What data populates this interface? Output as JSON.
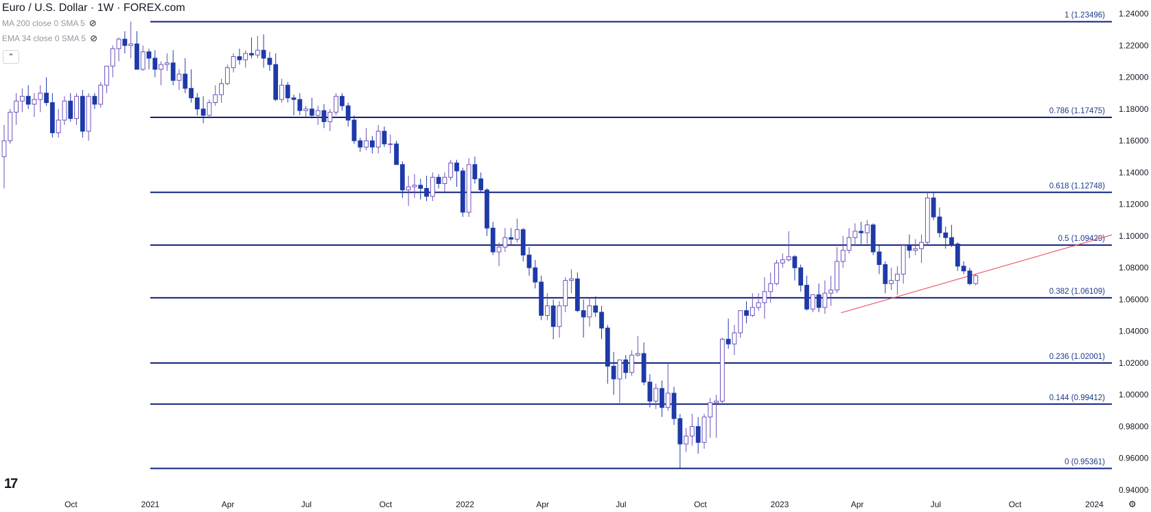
{
  "legend": {
    "title": "Euro / U.S. Dollar · 1W · FOREX.com",
    "ind1": "MA 200 close 0 SMA 5",
    "ind2": "EMA 34 close 0 SMA 5",
    "collapse_icon": "chevron-up-icon",
    "eye_icon": "eye-crossed-icon"
  },
  "logo_text": "17",
  "colors": {
    "bg": "#ffffff",
    "fib_line": "#0d1f7a",
    "fib_label": "#1e3a8a",
    "up_candle_fill": "#ffffff",
    "up_candle_border": "#6b4fbb",
    "down_candle_fill": "#1e3aa8",
    "trendline": "#f05b6a",
    "axis_text": "#131722"
  },
  "chart_data": {
    "type": "candlestick",
    "timeframe": "1W",
    "instrument": "Euro / U.S. Dollar",
    "x_tick_labels": [
      "Oct",
      "2021",
      "Apr",
      "Jul",
      "Oct",
      "2022",
      "Apr",
      "Jul",
      "Oct",
      "2023",
      "Apr",
      "Jul",
      "Oct",
      "2024"
    ],
    "y_tick_labels": [
      "1.24000",
      "1.22000",
      "1.20000",
      "1.18000",
      "1.16000",
      "1.14000",
      "1.12000",
      "1.10000",
      "1.08000",
      "1.06000",
      "1.04000",
      "1.02000",
      "1.00000",
      "0.98000",
      "0.96000",
      "0.94000"
    ],
    "y_ticks": [
      1.24,
      1.22,
      1.2,
      1.18,
      1.16,
      1.14,
      1.12,
      1.1,
      1.08,
      1.06,
      1.04,
      1.02,
      1.0,
      0.98,
      0.96,
      0.94
    ],
    "ylim": [
      0.937,
      1.2455
    ],
    "fib_levels": [
      {
        "label": "1 (1.23496)",
        "value": 1.23496
      },
      {
        "label": "0.786 (1.17475)",
        "value": 1.17475
      },
      {
        "label": "0.618 (1.12748)",
        "value": 1.12748
      },
      {
        "label": "0.5 (1.09429)",
        "value": 1.09429
      },
      {
        "label": "0.382 (1.06109)",
        "value": 1.06109
      },
      {
        "label": "0.236 (1.02001)",
        "value": 1.02001
      },
      {
        "label": "0.144 (0.99412)",
        "value": 0.99412
      },
      {
        "label": "0 (0.95361)",
        "value": 0.95361
      }
    ],
    "trendline": {
      "start": [
        "2023-03-13",
        1.0516
      ],
      "end": [
        "2023-11-20",
        1.1007
      ]
    },
    "candles": [
      [
        1.15,
        1.17,
        1.13,
        1.16
      ],
      [
        1.16,
        1.18,
        1.158,
        1.178
      ],
      [
        1.178,
        1.19,
        1.17,
        1.185
      ],
      [
        1.185,
        1.193,
        1.178,
        1.188
      ],
      [
        1.188,
        1.195,
        1.18,
        1.183
      ],
      [
        1.183,
        1.19,
        1.175,
        1.186
      ],
      [
        1.186,
        1.195,
        1.178,
        1.19
      ],
      [
        1.19,
        1.2,
        1.182,
        1.184
      ],
      [
        1.184,
        1.19,
        1.162,
        1.165
      ],
      [
        1.165,
        1.18,
        1.162,
        1.173
      ],
      [
        1.173,
        1.188,
        1.17,
        1.185
      ],
      [
        1.185,
        1.19,
        1.172,
        1.174
      ],
      [
        1.174,
        1.19,
        1.17,
        1.188
      ],
      [
        1.188,
        1.192,
        1.162,
        1.166
      ],
      [
        1.166,
        1.19,
        1.16,
        1.188
      ],
      [
        1.188,
        1.19,
        1.18,
        1.183
      ],
      [
        1.183,
        1.197,
        1.181,
        1.195
      ],
      [
        1.195,
        1.207,
        1.19,
        1.207
      ],
      [
        1.207,
        1.22,
        1.2,
        1.218
      ],
      [
        1.218,
        1.225,
        1.21,
        1.224
      ],
      [
        1.224,
        1.229,
        1.215,
        1.22
      ],
      [
        1.22,
        1.235,
        1.212,
        1.221
      ],
      [
        1.221,
        1.229,
        1.205,
        1.205
      ],
      [
        1.205,
        1.22,
        1.204,
        1.216
      ],
      [
        1.216,
        1.218,
        1.205,
        1.212
      ],
      [
        1.212,
        1.217,
        1.2,
        1.205
      ],
      [
        1.205,
        1.21,
        1.195,
        1.208
      ],
      [
        1.208,
        1.215,
        1.204,
        1.209
      ],
      [
        1.209,
        1.217,
        1.195,
        1.198
      ],
      [
        1.198,
        1.205,
        1.192,
        1.202
      ],
      [
        1.202,
        1.212,
        1.19,
        1.193
      ],
      [
        1.193,
        1.205,
        1.184,
        1.187
      ],
      [
        1.187,
        1.19,
        1.176,
        1.18
      ],
      [
        1.18,
        1.188,
        1.171,
        1.176
      ],
      [
        1.176,
        1.186,
        1.174,
        1.184
      ],
      [
        1.184,
        1.195,
        1.182,
        1.189
      ],
      [
        1.189,
        1.199,
        1.184,
        1.196
      ],
      [
        1.196,
        1.208,
        1.195,
        1.206
      ],
      [
        1.206,
        1.215,
        1.203,
        1.213
      ],
      [
        1.213,
        1.218,
        1.208,
        1.211
      ],
      [
        1.211,
        1.217,
        1.206,
        1.215
      ],
      [
        1.215,
        1.225,
        1.212,
        1.214
      ],
      [
        1.214,
        1.226,
        1.212,
        1.217
      ],
      [
        1.217,
        1.227,
        1.206,
        1.212
      ],
      [
        1.212,
        1.216,
        1.204,
        1.208
      ],
      [
        1.208,
        1.215,
        1.185,
        1.186
      ],
      [
        1.186,
        1.199,
        1.184,
        1.195
      ],
      [
        1.195,
        1.197,
        1.184,
        1.187
      ],
      [
        1.187,
        1.189,
        1.176,
        1.186
      ],
      [
        1.186,
        1.19,
        1.176,
        1.179
      ],
      [
        1.179,
        1.182,
        1.175,
        1.18
      ],
      [
        1.18,
        1.187,
        1.174,
        1.176
      ],
      [
        1.176,
        1.182,
        1.17,
        1.179
      ],
      [
        1.179,
        1.183,
        1.168,
        1.172
      ],
      [
        1.172,
        1.18,
        1.166,
        1.178
      ],
      [
        1.178,
        1.19,
        1.176,
        1.188
      ],
      [
        1.188,
        1.19,
        1.179,
        1.182
      ],
      [
        1.182,
        1.184,
        1.169,
        1.173
      ],
      [
        1.173,
        1.176,
        1.158,
        1.16
      ],
      [
        1.16,
        1.162,
        1.153,
        1.156
      ],
      [
        1.156,
        1.168,
        1.154,
        1.16
      ],
      [
        1.16,
        1.163,
        1.152,
        1.156
      ],
      [
        1.156,
        1.17,
        1.152,
        1.166
      ],
      [
        1.166,
        1.169,
        1.156,
        1.158
      ],
      [
        1.158,
        1.164,
        1.152,
        1.158
      ],
      [
        1.158,
        1.16,
        1.145,
        1.145
      ],
      [
        1.145,
        1.147,
        1.124,
        1.129
      ],
      [
        1.129,
        1.138,
        1.119,
        1.131
      ],
      [
        1.131,
        1.139,
        1.124,
        1.132
      ],
      [
        1.132,
        1.136,
        1.123,
        1.13
      ],
      [
        1.13,
        1.138,
        1.122,
        1.125
      ],
      [
        1.125,
        1.14,
        1.122,
        1.137
      ],
      [
        1.137,
        1.139,
        1.13,
        1.133
      ],
      [
        1.133,
        1.14,
        1.128,
        1.137
      ],
      [
        1.137,
        1.148,
        1.135,
        1.146
      ],
      [
        1.146,
        1.148,
        1.131,
        1.141
      ],
      [
        1.141,
        1.143,
        1.112,
        1.115
      ],
      [
        1.115,
        1.149,
        1.112,
        1.145
      ],
      [
        1.145,
        1.15,
        1.133,
        1.136
      ],
      [
        1.136,
        1.14,
        1.127,
        1.129
      ],
      [
        1.129,
        1.13,
        1.1,
        1.105
      ],
      [
        1.105,
        1.109,
        1.088,
        1.09
      ],
      [
        1.09,
        1.096,
        1.081,
        1.093
      ],
      [
        1.093,
        1.105,
        1.09,
        1.099
      ],
      [
        1.099,
        1.105,
        1.094,
        1.098
      ],
      [
        1.098,
        1.111,
        1.096,
        1.104
      ],
      [
        1.104,
        1.105,
        1.084,
        1.088
      ],
      [
        1.088,
        1.093,
        1.075,
        1.08
      ],
      [
        1.08,
        1.085,
        1.067,
        1.071
      ],
      [
        1.071,
        1.075,
        1.047,
        1.05
      ],
      [
        1.05,
        1.064,
        1.047,
        1.056
      ],
      [
        1.056,
        1.06,
        1.035,
        1.043
      ],
      [
        1.043,
        1.059,
        1.036,
        1.056
      ],
      [
        1.056,
        1.074,
        1.052,
        1.072
      ],
      [
        1.072,
        1.079,
        1.064,
        1.073
      ],
      [
        1.073,
        1.077,
        1.052,
        1.053
      ],
      [
        1.053,
        1.06,
        1.036,
        1.049
      ],
      [
        1.049,
        1.061,
        1.043,
        1.056
      ],
      [
        1.056,
        1.062,
        1.049,
        1.052
      ],
      [
        1.052,
        1.056,
        1.035,
        1.042
      ],
      [
        1.042,
        1.044,
        1.007,
        1.018
      ],
      [
        1.018,
        1.027,
        1.0,
        1.01
      ],
      [
        1.01,
        1.02,
        0.995,
        1.022
      ],
      [
        1.022,
        1.025,
        1.01,
        1.014
      ],
      [
        1.014,
        1.028,
        1.012,
        1.025
      ],
      [
        1.025,
        1.037,
        1.024,
        1.026
      ],
      [
        1.026,
        1.033,
        1.006,
        1.008
      ],
      [
        1.008,
        1.013,
        0.992,
        0.996
      ],
      [
        0.996,
        1.007,
        0.991,
        1.004
      ],
      [
        1.004,
        1.009,
        0.986,
        0.992
      ],
      [
        0.992,
        1.02,
        0.99,
        1.001
      ],
      [
        1.001,
        1.005,
        0.981,
        0.985
      ],
      [
        0.985,
        0.988,
        0.954,
        0.969
      ],
      [
        0.969,
        0.979,
        0.964,
        0.974
      ],
      [
        0.974,
        0.988,
        0.968,
        0.98
      ],
      [
        0.98,
        0.986,
        0.963,
        0.97
      ],
      [
        0.97,
        0.988,
        0.966,
        0.986
      ],
      [
        0.986,
        0.998,
        0.973,
        0.995
      ],
      [
        0.995,
        1.0,
        0.973,
        0.996
      ],
      [
        0.996,
        1.036,
        0.994,
        1.035
      ],
      [
        1.035,
        1.048,
        1.029,
        1.032
      ],
      [
        1.032,
        1.044,
        1.025,
        1.039
      ],
      [
        1.039,
        1.053,
        1.036,
        1.053
      ],
      [
        1.053,
        1.059,
        1.045,
        1.05
      ],
      [
        1.05,
        1.064,
        1.049,
        1.055
      ],
      [
        1.055,
        1.064,
        1.053,
        1.058
      ],
      [
        1.058,
        1.074,
        1.048,
        1.065
      ],
      [
        1.065,
        1.077,
        1.058,
        1.07
      ],
      [
        1.07,
        1.085,
        1.069,
        1.083
      ],
      [
        1.083,
        1.089,
        1.08,
        1.085
      ],
      [
        1.085,
        1.103,
        1.084,
        1.087
      ],
      [
        1.087,
        1.088,
        1.072,
        1.08
      ],
      [
        1.08,
        1.082,
        1.065,
        1.069
      ],
      [
        1.069,
        1.075,
        1.053,
        1.054
      ],
      [
        1.054,
        1.062,
        1.052,
        1.063
      ],
      [
        1.063,
        1.07,
        1.052,
        1.055
      ],
      [
        1.055,
        1.072,
        1.051,
        1.064
      ],
      [
        1.064,
        1.075,
        1.056,
        1.066
      ],
      [
        1.066,
        1.093,
        1.064,
        1.084
      ],
      [
        1.084,
        1.1,
        1.08,
        1.091
      ],
      [
        1.091,
        1.105,
        1.089,
        1.099
      ],
      [
        1.099,
        1.108,
        1.094,
        1.103
      ],
      [
        1.103,
        1.109,
        1.095,
        1.102
      ],
      [
        1.102,
        1.11,
        1.095,
        1.107
      ],
      [
        1.107,
        1.108,
        1.088,
        1.09
      ],
      [
        1.09,
        1.094,
        1.076,
        1.082
      ],
      [
        1.082,
        1.084,
        1.064,
        1.07
      ],
      [
        1.07,
        1.08,
        1.066,
        1.072
      ],
      [
        1.072,
        1.081,
        1.063,
        1.076
      ],
      [
        1.076,
        1.095,
        1.07,
        1.094
      ],
      [
        1.094,
        1.101,
        1.086,
        1.091
      ],
      [
        1.091,
        1.098,
        1.088,
        1.092
      ],
      [
        1.092,
        1.101,
        1.083,
        1.096
      ],
      [
        1.096,
        1.128,
        1.094,
        1.124
      ],
      [
        1.124,
        1.127,
        1.11,
        1.112
      ],
      [
        1.112,
        1.118,
        1.099,
        1.102
      ],
      [
        1.102,
        1.106,
        1.092,
        1.099
      ],
      [
        1.099,
        1.107,
        1.093,
        1.095
      ],
      [
        1.095,
        1.096,
        1.078,
        1.081
      ],
      [
        1.081,
        1.084,
        1.076,
        1.078
      ],
      [
        1.078,
        1.08,
        1.069,
        1.07
      ],
      [
        1.07,
        1.076,
        1.069,
        1.075
      ]
    ]
  }
}
